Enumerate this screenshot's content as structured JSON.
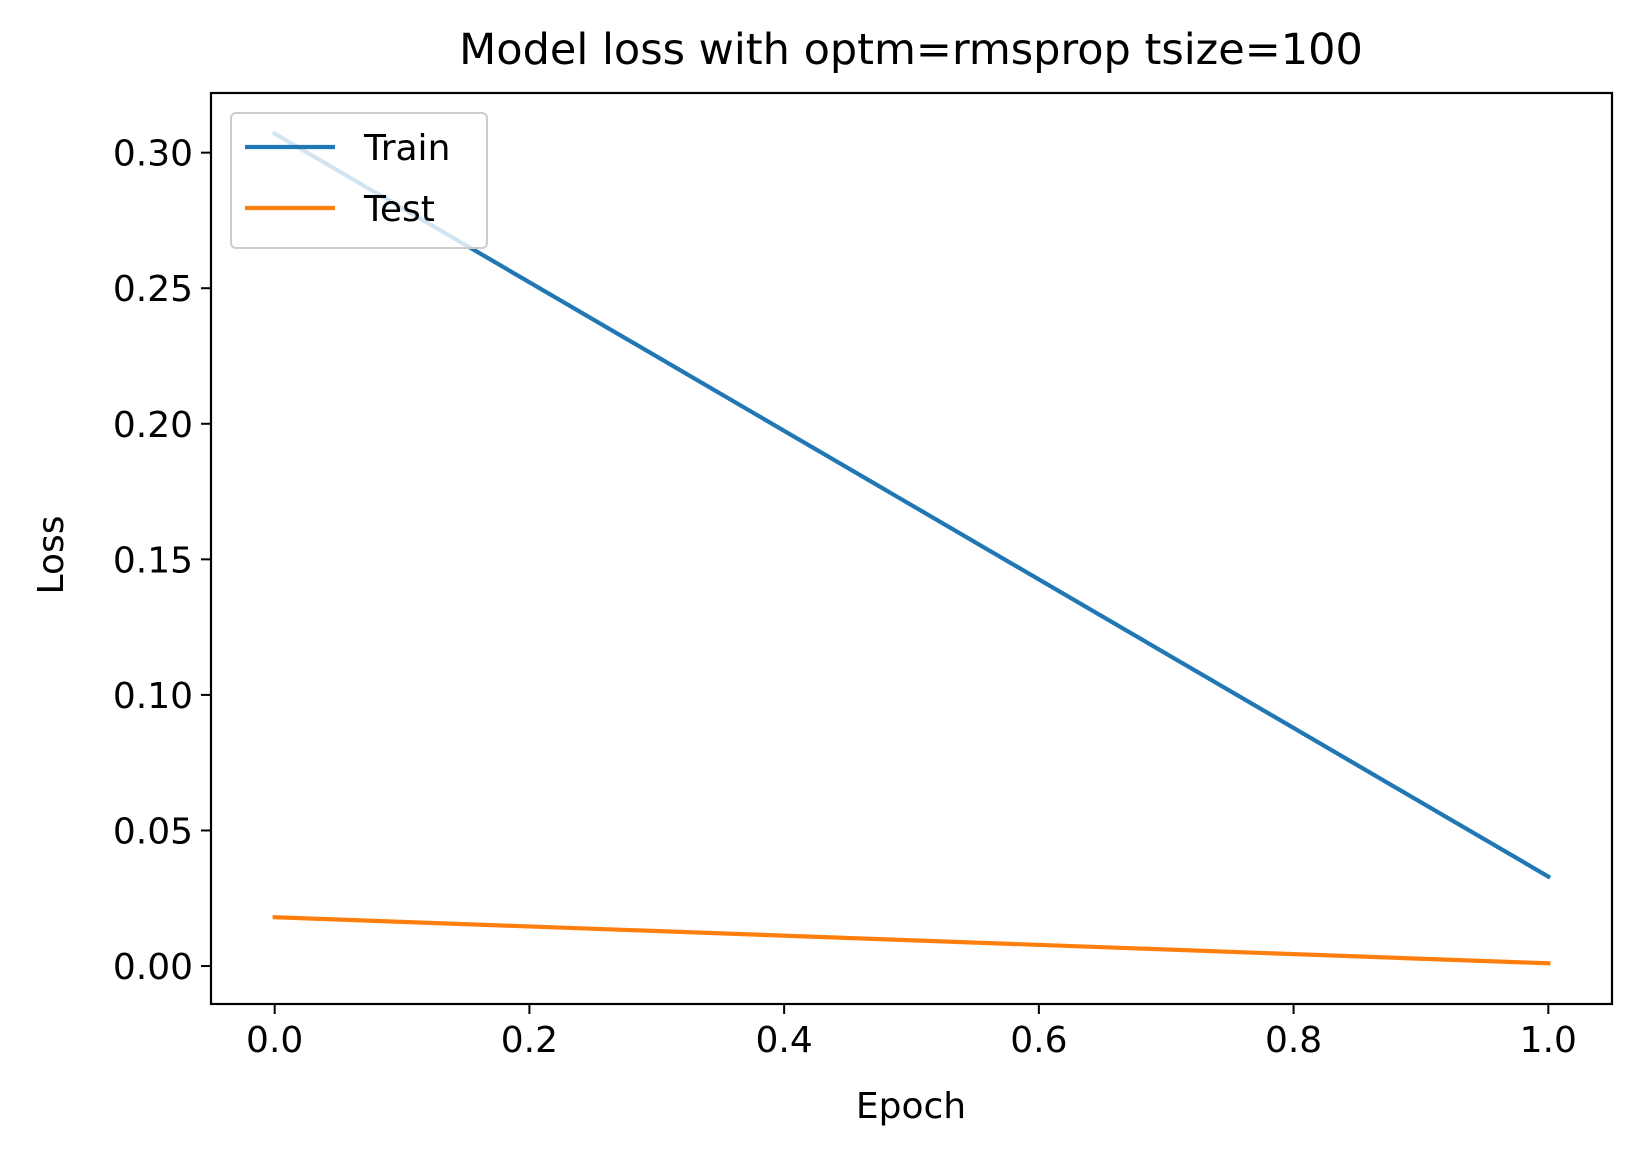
{
  "chart_data": {
    "type": "line",
    "title": "Model loss with optm=rmsprop tsize=100",
    "xlabel": "Epoch",
    "ylabel": "Loss",
    "xlim": [
      -0.05,
      1.05
    ],
    "ylim": [
      -0.014,
      0.322
    ],
    "xticks": [
      0.0,
      0.2,
      0.4,
      0.6,
      0.8,
      1.0
    ],
    "xtick_labels": [
      "0.0",
      "0.2",
      "0.4",
      "0.6",
      "0.8",
      "1.0"
    ],
    "yticks": [
      0.0,
      0.05,
      0.1,
      0.15,
      0.2,
      0.25,
      0.3
    ],
    "ytick_labels": [
      "0.00",
      "0.05",
      "0.10",
      "0.15",
      "0.20",
      "0.25",
      "0.30"
    ],
    "grid": false,
    "legend_position": "upper-left",
    "series": [
      {
        "name": "Train",
        "color": "#1f77b4",
        "x": [
          0.0,
          1.0
        ],
        "y": [
          0.307,
          0.033
        ]
      },
      {
        "name": "Test",
        "color": "#ff7f0e",
        "x": [
          0.0,
          1.0
        ],
        "y": [
          0.018,
          0.001
        ]
      }
    ]
  }
}
